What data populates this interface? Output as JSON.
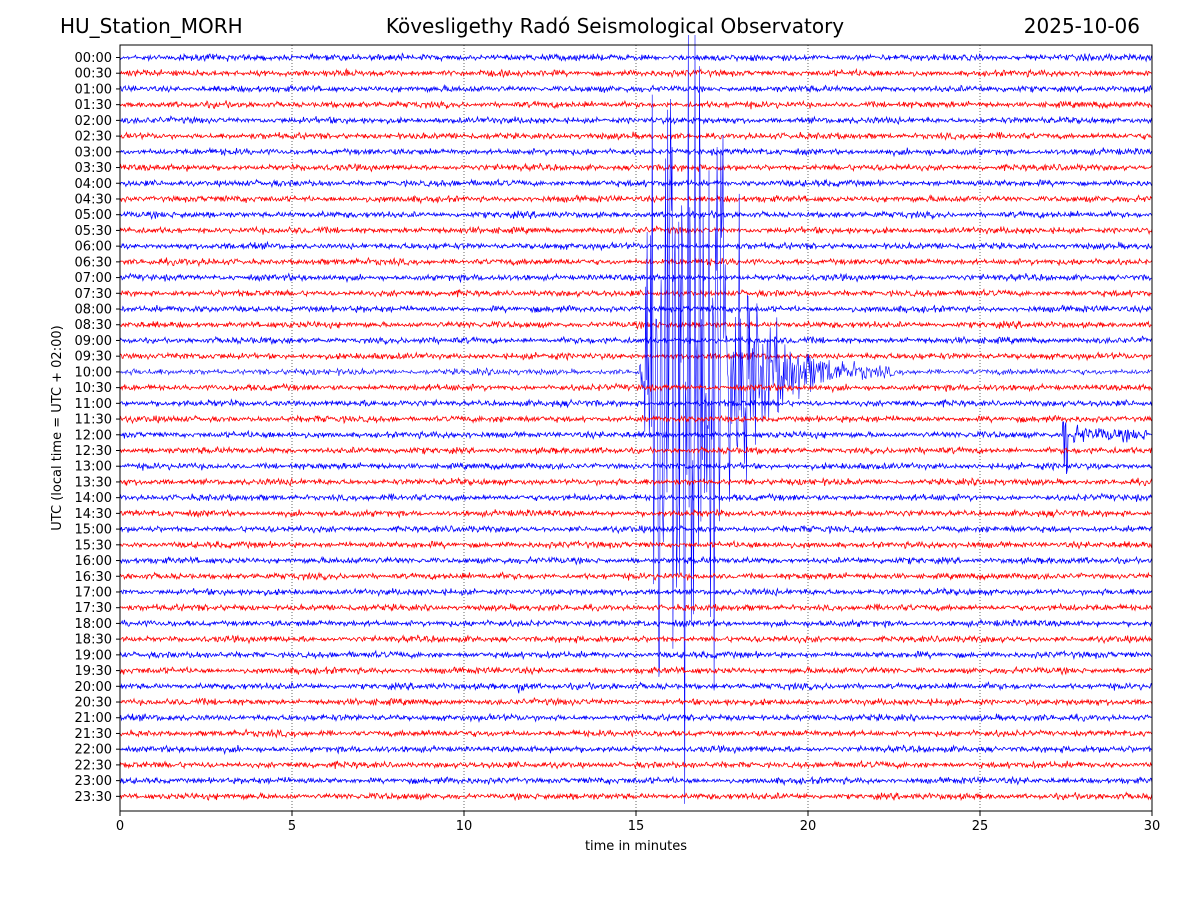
{
  "header": {
    "station": "HU_Station_MORH",
    "title": "Kövesligethy Radó Seismological Observatory",
    "date": "2025-10-06"
  },
  "chart_data": {
    "type": "line",
    "title": "Kövesligethy Radó Seismological Observatory",
    "xlabel": "time in minutes",
    "ylabel": "UTC (local time = UTC + 02:00)",
    "xlim": [
      0,
      30
    ],
    "xticks": [
      0,
      5,
      10,
      15,
      20,
      25,
      30
    ],
    "grid": "vertical dotted at x ticks",
    "trace_colors": [
      "#0000ff",
      "#ff0000"
    ],
    "rows": [
      "00:00",
      "00:30",
      "01:00",
      "01:30",
      "02:00",
      "02:30",
      "03:00",
      "03:30",
      "04:00",
      "04:30",
      "05:00",
      "05:30",
      "06:00",
      "06:30",
      "07:00",
      "07:30",
      "08:00",
      "08:30",
      "09:00",
      "09:30",
      "10:00",
      "10:30",
      "11:00",
      "11:30",
      "12:00",
      "12:30",
      "13:00",
      "13:30",
      "14:00",
      "14:30",
      "15:00",
      "15:30",
      "16:00",
      "16:30",
      "17:00",
      "17:30",
      "18:00",
      "18:30",
      "19:00",
      "19:30",
      "20:00",
      "20:30",
      "21:00",
      "21:30",
      "22:00",
      "22:30",
      "23:00",
      "23:30"
    ],
    "events": [
      {
        "row": "10:00",
        "onset_min": 15.1,
        "peak_min": 16.8,
        "end_min": 22.5
      },
      {
        "row": "12:00",
        "onset_min": 27.4,
        "end_min": 30
      },
      {
        "row": "20:00",
        "onset_min": 11.55,
        "end_min": 12.2
      }
    ]
  }
}
